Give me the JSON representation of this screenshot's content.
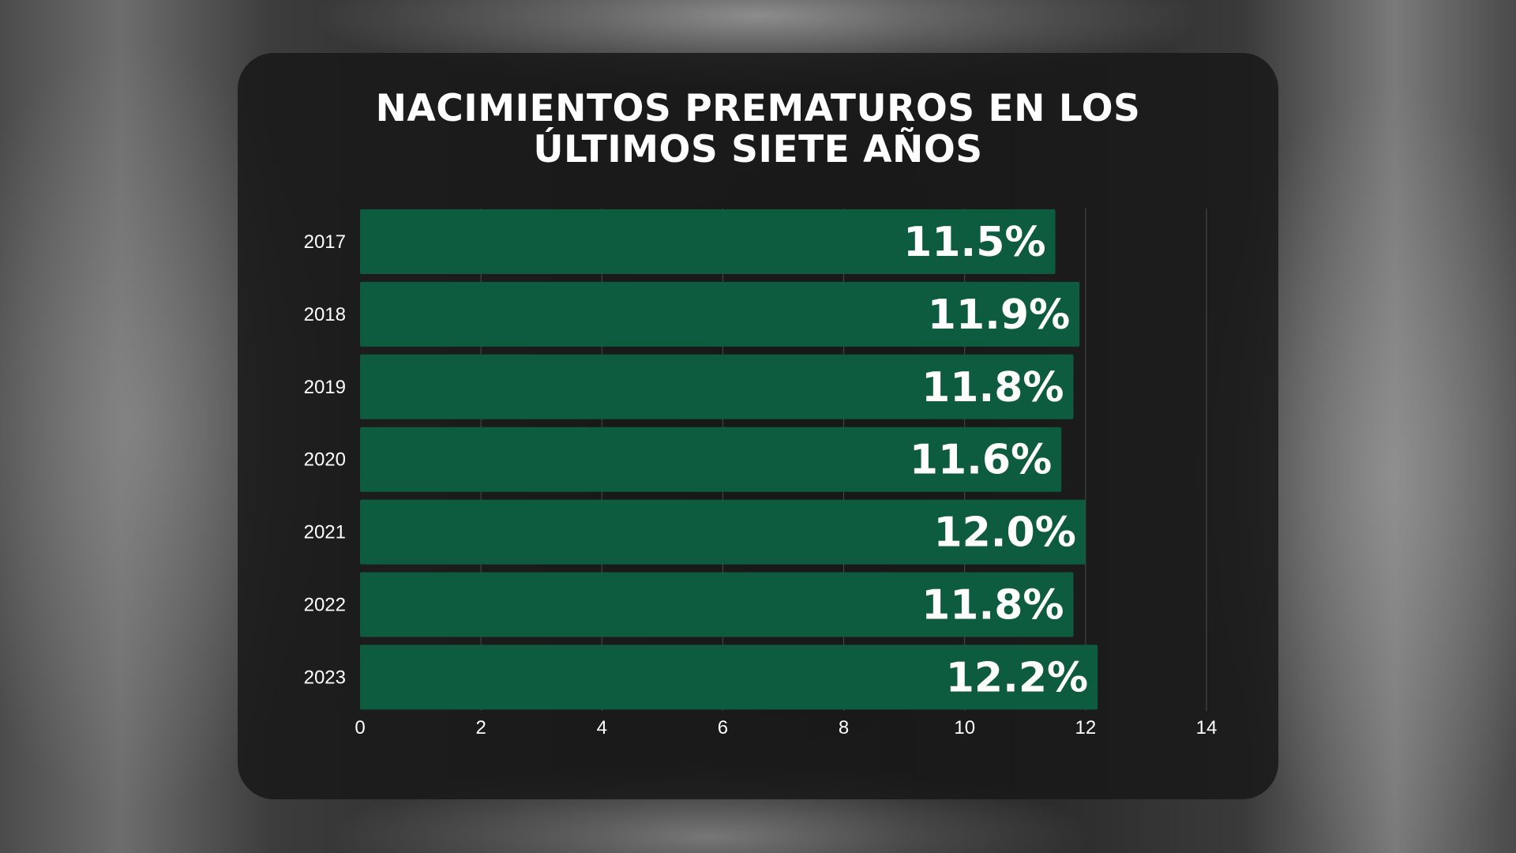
{
  "chart_data": {
    "type": "bar",
    "orientation": "horizontal",
    "title_lines": [
      "NACIMIENTOS PREMATUROS EN LOS",
      "ÚLTIMOS SIETE AÑOS"
    ],
    "categories": [
      "2017",
      "2018",
      "2019",
      "2020",
      "2021",
      "2022",
      "2023"
    ],
    "values": [
      11.5,
      11.9,
      11.8,
      11.6,
      12.0,
      11.8,
      12.2
    ],
    "data_labels": [
      "11.5%",
      "11.9%",
      "11.8%",
      "11.6%",
      "12.0%",
      "11.8%",
      "12.2%"
    ],
    "xlim": [
      0,
      14
    ],
    "x_ticks": [
      "0",
      "2",
      "4",
      "6",
      "8",
      "10",
      "12",
      "14"
    ],
    "grid": true,
    "bar_color": "#0e5c3f"
  }
}
